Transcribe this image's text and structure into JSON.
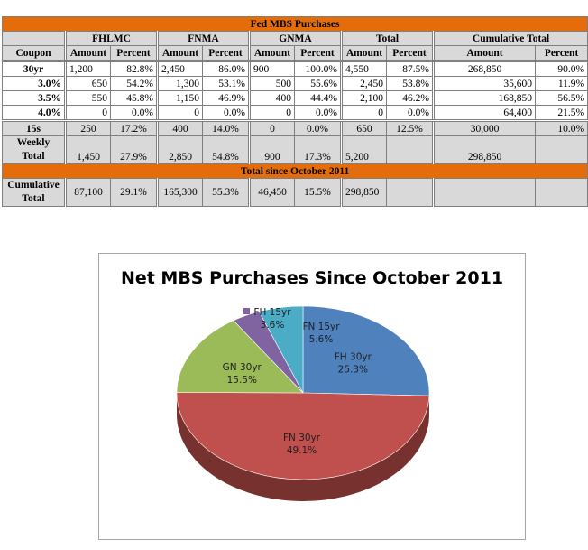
{
  "table": {
    "title": "Fed MBS Purchases",
    "group_headers": [
      "FHLMC",
      "FNMA",
      "GNMA",
      "Total",
      "Cumulative Total"
    ],
    "sub_headers": {
      "coupon": "Coupon",
      "amount": "Amount",
      "percent": "Percent"
    },
    "rows": [
      {
        "label": "30yr",
        "cells": [
          "1,200",
          "82.8%",
          "2,450",
          "86.0%",
          "900",
          "100.0%",
          "4,550",
          "87.5%",
          "268,850",
          "90.0%"
        ]
      },
      {
        "label": "3.0%",
        "cells": [
          "650",
          "54.2%",
          "1,300",
          "53.1%",
          "500",
          "55.6%",
          "2,450",
          "53.8%",
          "35,600",
          "11.9%"
        ]
      },
      {
        "label": "3.5%",
        "cells": [
          "550",
          "45.8%",
          "1,150",
          "46.9%",
          "400",
          "44.4%",
          "2,100",
          "46.2%",
          "168,850",
          "56.5%"
        ]
      },
      {
        "label": "4.0%",
        "cells": [
          "0",
          "0.0%",
          "0",
          "0.0%",
          "0",
          "0.0%",
          "0",
          "0.0%",
          "64,400",
          "21.5%"
        ]
      },
      {
        "label": "15s",
        "cells": [
          "250",
          "17.2%",
          "400",
          "14.0%",
          "0",
          "0.0%",
          "650",
          "12.5%",
          "30,000",
          "10.0%"
        ]
      }
    ],
    "weekly": {
      "label_line1": "Weekly",
      "label_line2": "Total",
      "cells": [
        "1,450",
        "27.9%",
        "2,850",
        "54.8%",
        "900",
        "17.3%",
        "5,200",
        "",
        "298,850",
        ""
      ]
    },
    "banner": "Total since October 2011",
    "cumulative": {
      "label_line1": "Cumulative",
      "label_line2": "Total",
      "cells": [
        "87,100",
        "29.1%",
        "165,300",
        "55.3%",
        "46,450",
        "15.5%",
        "298,850",
        ""
      ]
    }
  },
  "chart_data": {
    "type": "pie",
    "title": "Net MBS Purchases Since October 2011",
    "slices": [
      {
        "name": "FH 30yr",
        "value": 25.3,
        "label": "25.3%",
        "color": "#4f81bd"
      },
      {
        "name": "FN 30yr",
        "value": 49.1,
        "label": "49.1%",
        "color": "#c0504d"
      },
      {
        "name": "GN 30yr",
        "value": 15.5,
        "label": "15.5%",
        "color": "#9bbb59"
      },
      {
        "name": "FH 15yr",
        "value": 3.6,
        "label": "3.6%",
        "color": "#8064a2"
      },
      {
        "name": "FN 15yr",
        "value": 5.6,
        "label": "5.6%",
        "color": "#4bacc6"
      }
    ]
  }
}
